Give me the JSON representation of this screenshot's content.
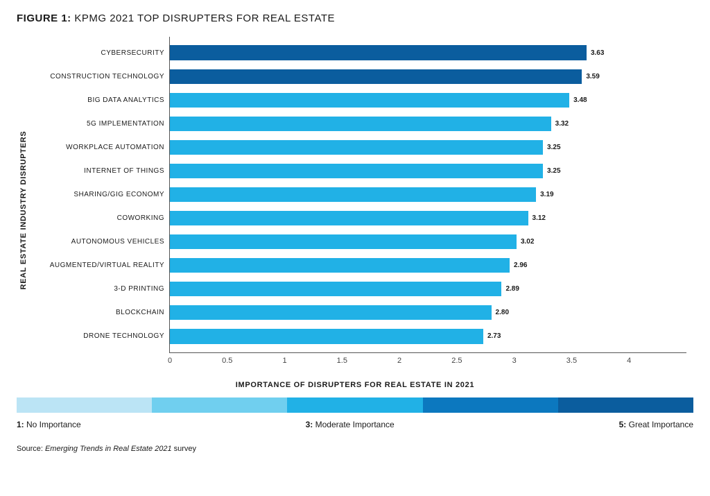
{
  "title_prefix": "FIGURE 1:",
  "title_rest": " KPMG 2021 TOP DISRUPTERS FOR REAL ESTATE",
  "y_axis_title": "REAL ESTATE INDUSTRY DISRUPTERS",
  "x_axis_title": "IMPORTANCE OF DISRUPTERS FOR REAL ESTATE IN 2021",
  "chart": {
    "type": "bar-horizontal",
    "xlim": [
      0,
      4.5
    ],
    "xtick_step": 0.5,
    "xticks": [
      "0",
      "0.5",
      "1",
      "1.5",
      "2",
      "2.5",
      "3",
      "3.5",
      "4"
    ],
    "bar_gap_ratio": 0.38,
    "background_color": "#ffffff",
    "axis_color": "#555555",
    "label_fontsize": 10,
    "value_fontsize": 10,
    "items": [
      {
        "label": "CYBERSECURITY",
        "value": 3.63,
        "color": "#0b5d9e"
      },
      {
        "label": "CONSTRUCTION TECHNOLOGY",
        "value": 3.59,
        "color": "#0b5d9e"
      },
      {
        "label": "BIG DATA ANALYTICS",
        "value": 3.48,
        "color": "#21b1e6"
      },
      {
        "label": "5G IMPLEMENTATION",
        "value": 3.32,
        "color": "#21b1e6"
      },
      {
        "label": "WORKPLACE AUTOMATION",
        "value": 3.25,
        "color": "#21b1e6"
      },
      {
        "label": "INTERNET OF THINGS",
        "value": 3.25,
        "color": "#21b1e6"
      },
      {
        "label": "SHARING/GIG ECONOMY",
        "value": 3.19,
        "color": "#21b1e6"
      },
      {
        "label": "COWORKING",
        "value": 3.12,
        "color": "#21b1e6"
      },
      {
        "label": "AUTONOMOUS VEHICLES",
        "value": 3.02,
        "color": "#21b1e6"
      },
      {
        "label": "AUGMENTED/VIRTUAL REALITY",
        "value": 2.96,
        "color": "#21b1e6"
      },
      {
        "label": "3-D PRINTING",
        "value": 2.89,
        "color": "#21b1e6"
      },
      {
        "label": "BLOCKCHAIN",
        "value": 2.8,
        "color": "#21b1e6"
      },
      {
        "label": "DRONE TECHNOLOGY",
        "value": 2.73,
        "color": "#21b1e6"
      }
    ]
  },
  "scale": {
    "colors": [
      "#bbe4f5",
      "#70cfef",
      "#21b1e6",
      "#0c78bf",
      "#0b5d9e"
    ],
    "labels": [
      {
        "num": "1:",
        "text": " No Importance"
      },
      {
        "num": "3:",
        "text": " Moderate Importance"
      },
      {
        "num": "5:",
        "text": " Great Importance"
      }
    ]
  },
  "source_prefix": "Source: ",
  "source_italic": "Emerging Trends in Real Estate 2021",
  "source_suffix": " survey"
}
